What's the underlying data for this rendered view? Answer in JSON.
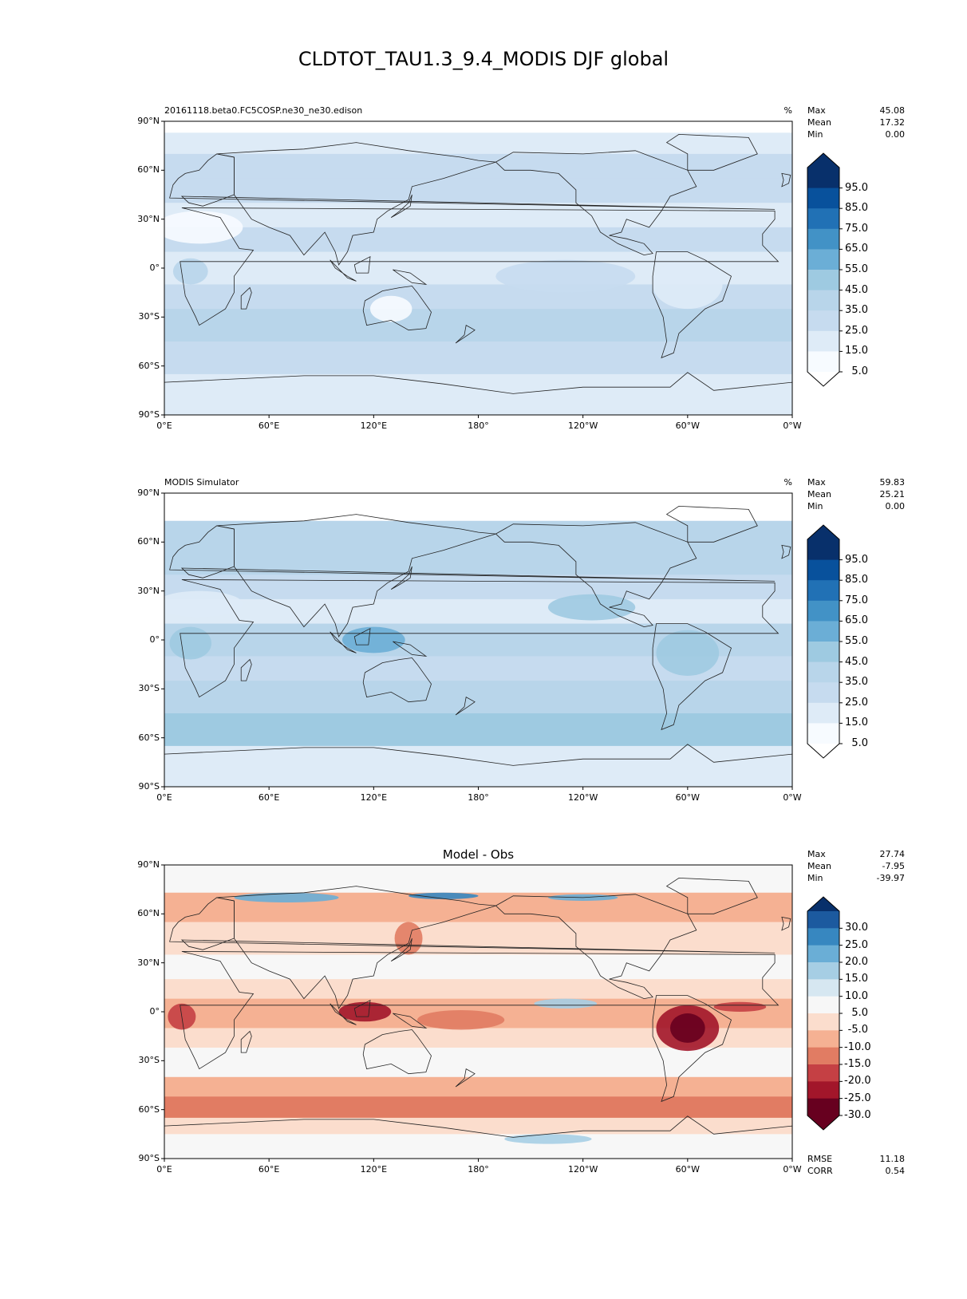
{
  "figure": {
    "title": "CLDTOT_TAU1.3_9.4_MODIS DJF global"
  },
  "axes": {
    "lat_ticks": [
      "90°N",
      "60°N",
      "30°N",
      "0°",
      "30°S",
      "60°S",
      "90°S"
    ],
    "lon_ticks": [
      "0°E",
      "60°E",
      "120°E",
      "180°",
      "120°W",
      "60°W",
      "0°W"
    ]
  },
  "panels": [
    {
      "id": "test",
      "left_title": "20161118.beta0.FC5COSP.ne30_ne30.edison",
      "center_title": "",
      "units": "%",
      "stats": [
        {
          "label": "Max",
          "value": "45.08"
        },
        {
          "label": "Mean",
          "value": "17.32"
        },
        {
          "label": "Min",
          "value": "0.00"
        }
      ],
      "colorbar": {
        "labels": [
          "95.0",
          "85.0",
          "75.0",
          "65.0",
          "55.0",
          "45.0",
          "35.0",
          "25.0",
          "15.0",
          "5.0"
        ],
        "colors": [
          "#08306b",
          "#08519c",
          "#2171b5",
          "#4292c6",
          "#6baed6",
          "#9ecae1",
          "#b8d5ea",
          "#c6dbef",
          "#deebf7",
          "#f7fbff"
        ],
        "top_color": "#08306b",
        "bottom_color": "#ffffff"
      }
    },
    {
      "id": "ref",
      "left_title": "MODIS Simulator",
      "center_title": "",
      "units": "%",
      "stats": [
        {
          "label": "Max",
          "value": "59.83"
        },
        {
          "label": "Mean",
          "value": "25.21"
        },
        {
          "label": "Min",
          "value": "0.00"
        }
      ],
      "colorbar": {
        "labels": [
          "95.0",
          "85.0",
          "75.0",
          "65.0",
          "55.0",
          "45.0",
          "35.0",
          "25.0",
          "15.0",
          "5.0"
        ],
        "colors": [
          "#08306b",
          "#08519c",
          "#2171b5",
          "#4292c6",
          "#6baed6",
          "#9ecae1",
          "#b8d5ea",
          "#c6dbef",
          "#deebf7",
          "#f7fbff"
        ],
        "top_color": "#08306b",
        "bottom_color": "#ffffff"
      }
    },
    {
      "id": "diff",
      "left_title": "",
      "center_title": "Model - Obs",
      "units": "",
      "stats": [
        {
          "label": "Max",
          "value": "27.74"
        },
        {
          "label": "Mean",
          "value": "-7.95"
        },
        {
          "label": "Min",
          "value": "-39.97"
        }
      ],
      "bottom_stats": [
        {
          "label": "RMSE",
          "value": "11.18"
        },
        {
          "label": "CORR",
          "value": "0.54"
        }
      ],
      "colorbar": {
        "labels": [
          "30.0",
          "25.0",
          "20.0",
          "15.0",
          "10.0",
          "5.0",
          "-5.0",
          "-10.0",
          "-15.0",
          "-20.0",
          "-25.0",
          "-30.0"
        ],
        "colors": [
          "#1c5a9f",
          "#3787c0",
          "#6aaed6",
          "#a6cee4",
          "#d6e7f1",
          "#f7f7f7",
          "#fbddcd",
          "#f5b193",
          "#e17c63",
          "#c54044",
          "#a2162a",
          "#67001f"
        ],
        "top_color": "#08306b",
        "bottom_color": "#67001f"
      }
    }
  ]
}
